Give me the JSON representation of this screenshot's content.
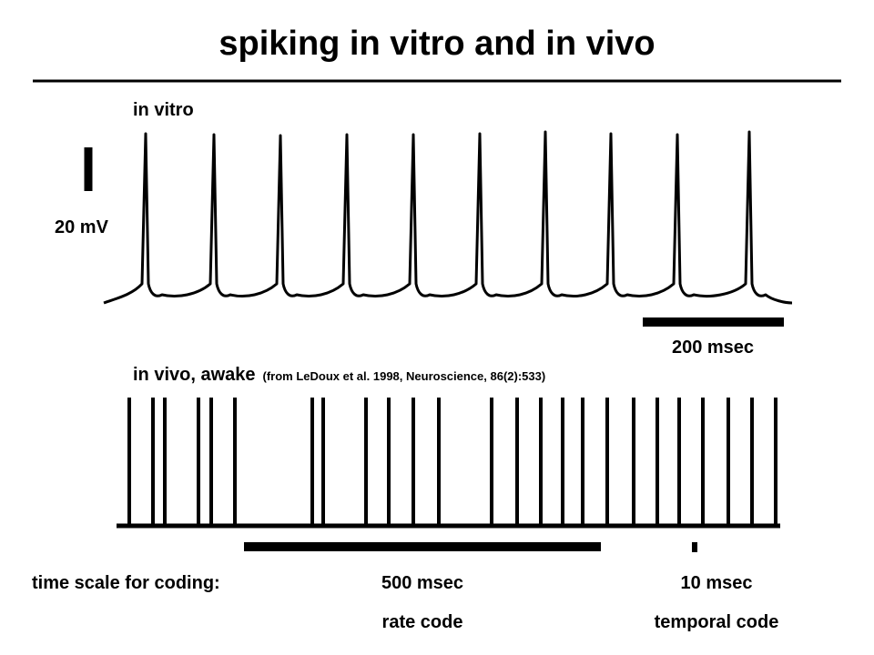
{
  "slide": {
    "title": "spiking in vitro and in vivo"
  },
  "in_vitro": {
    "label": "in vitro",
    "voltage_scale_label": "20 mV",
    "time_scale_label": "200 msec",
    "spike_count": 10
  },
  "in_vivo": {
    "label": "in vivo, awake",
    "citation": "(from LeDoux et al. 1998, Neuroscience, 86(2):533)",
    "spike_count": 26
  },
  "coding": {
    "prompt": "time scale for coding:",
    "rate_window": "500 msec",
    "rate_name": "rate code",
    "temporal_window": "10 msec",
    "temporal_name": "temporal code"
  },
  "colors": {
    "ink": "#000000",
    "background": "#ffffff"
  }
}
